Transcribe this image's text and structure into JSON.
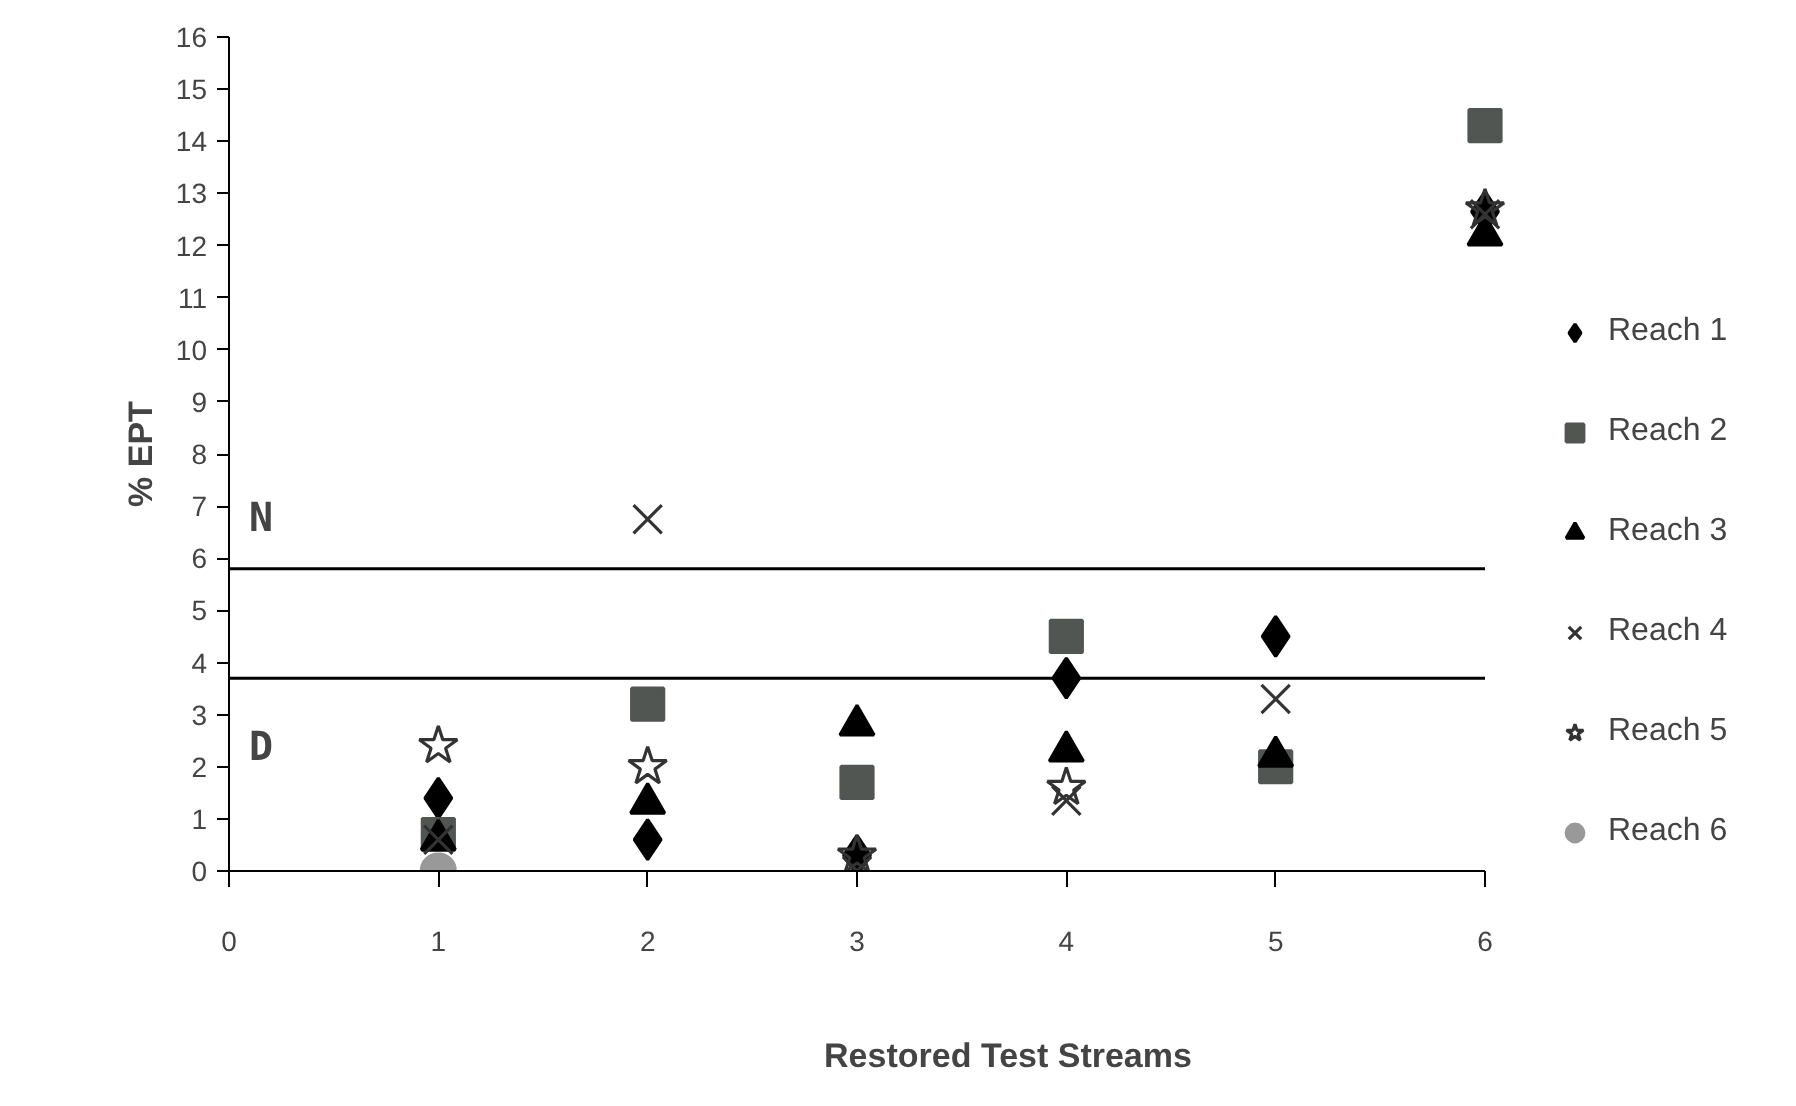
{
  "chart_data": {
    "type": "scatter",
    "xlabel": "Restored Test Streams",
    "ylabel": "% EPT",
    "x": [
      1,
      2,
      3,
      4,
      5,
      6
    ],
    "series": [
      {
        "name": "Reach 1",
        "color": "#000000",
        "marker": "diamond",
        "values": [
          1.4,
          0.6,
          0.3,
          3.7,
          4.5,
          12.65
        ]
      },
      {
        "name": "Reach 2",
        "color": "#515653",
        "marker": "square",
        "values": [
          0.7,
          3.2,
          1.7,
          4.5,
          2.0,
          14.3
        ]
      },
      {
        "name": "Reach 3",
        "color": "#000000",
        "marker": "triangle",
        "values": [
          0.6,
          1.3,
          2.8,
          2.3,
          2.2,
          12.2
        ]
      },
      {
        "name": "Reach 4",
        "color": "#333333",
        "marker": "cross",
        "values": [
          0.6,
          6.75,
          0.0,
          1.35,
          3.3,
          12.6
        ]
      },
      {
        "name": "Reach 5",
        "color": "#333333",
        "marker": "star",
        "values": [
          2.4,
          2.0,
          0.3,
          1.6,
          null,
          12.7
        ]
      },
      {
        "name": "Reach 6",
        "color": "#999999",
        "marker": "circle",
        "values": [
          0.0,
          null,
          null,
          null,
          null,
          null
        ]
      }
    ],
    "xlim": [
      0,
      6
    ],
    "xticks": [
      0,
      1,
      2,
      3,
      4,
      5,
      6
    ],
    "ylim": [
      0,
      16
    ],
    "yticks": [
      0,
      1,
      2,
      3,
      4,
      5,
      6,
      7,
      8,
      9,
      10,
      11,
      12,
      13,
      14,
      15,
      16
    ],
    "ref_lines": [
      {
        "axis": "y",
        "value": 5.8,
        "color": "#000000",
        "label": "N"
      },
      {
        "axis": "y",
        "value": 3.7,
        "color": "#000000",
        "label": "D"
      }
    ],
    "grid": false,
    "legend": "right"
  }
}
